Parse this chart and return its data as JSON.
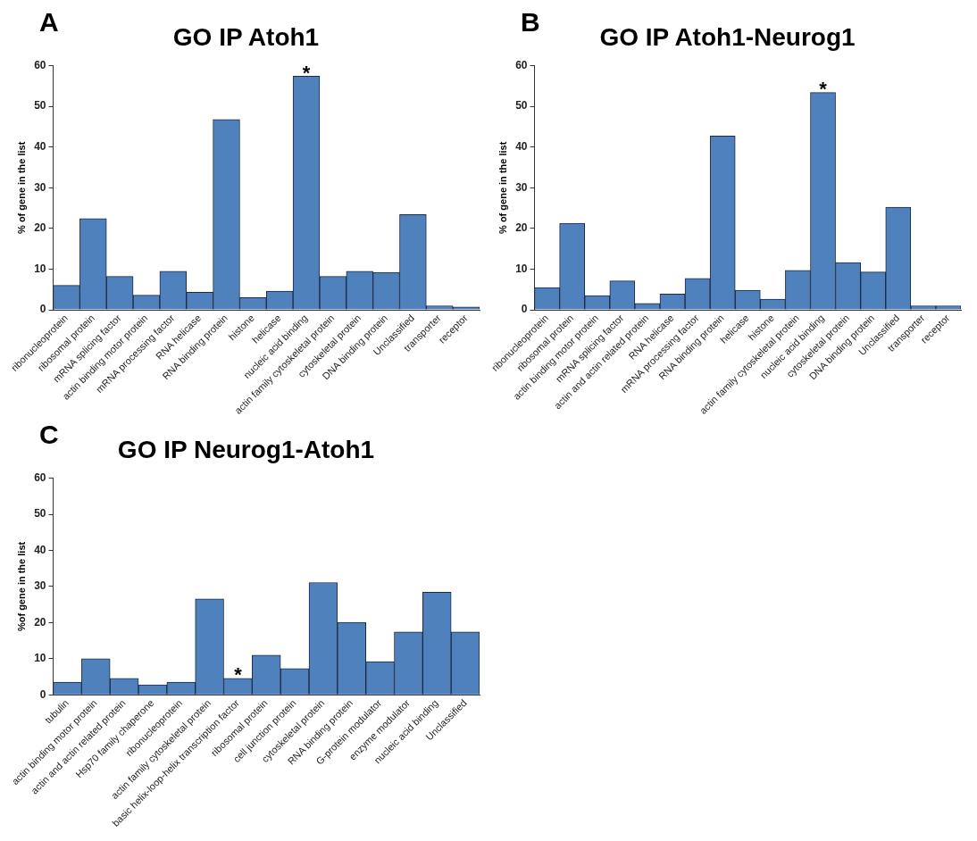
{
  "chart_data": [
    {
      "type": "bar",
      "title": "GO IP Atoh1",
      "ylabel": "% of gene in the list",
      "categories": [
        "ribonucleoprotein",
        "ribosomal protein",
        "mRNA splicing factor",
        "actin binding motor protein",
        "mRNA processing factor",
        "RNA helicase",
        "RNA binding protein",
        "histone",
        "helicase",
        "nucleic acid binding",
        "actin family cytoskeletal protein",
        "cytoskeletal protein",
        "DNA binding protein",
        "Unclassified",
        "transporter",
        "receptor"
      ],
      "values": [
        6,
        22.4,
        8.2,
        3.6,
        9.5,
        4.3,
        46.8,
        3,
        4.6,
        57.4,
        8.2,
        9.5,
        9.2,
        23.4,
        1,
        0.7
      ],
      "color": "#4f81bd",
      "ylim": [
        0,
        60
      ],
      "yticks": [
        0,
        10,
        20,
        30,
        40,
        50,
        60
      ],
      "grid": false,
      "legend": false,
      "annotations": [
        "A",
        {
          "text": "*",
          "x": "nucleic acid binding",
          "y": 57.4
        }
      ]
    },
    {
      "type": "bar",
      "title": "GO IP Atoh1-Neurog1",
      "ylabel": "% of gene in the list",
      "categories": [
        "ribonucleoprotein",
        "ribosomal protein",
        "actin binding motor protein",
        "mRNA splicing factor",
        "actin and actin related protein",
        "RNA helicase",
        "mRNA processing factor",
        "RNA binding protein",
        "helicase",
        "histone",
        "actin family cytoskeletal protein",
        "nucleic acid binding",
        "cytoskeletal protein",
        "DNA binding protein",
        "Unclassified",
        "transporter",
        "receptor"
      ],
      "values": [
        5.5,
        21.3,
        3.5,
        7.1,
        1.6,
        3.9,
        7.7,
        42.7,
        4.8,
        2.6,
        9.7,
        53.4,
        11.6,
        9.3,
        25.2,
        1,
        1
      ],
      "color": "#4f81bd",
      "ylim": [
        0,
        60
      ],
      "yticks": [
        0,
        10,
        20,
        30,
        40,
        50,
        60
      ],
      "grid": false,
      "legend": false,
      "annotations": [
        "B",
        {
          "text": "*",
          "x": "nucleic acid binding",
          "y": 53.4
        }
      ]
    },
    {
      "type": "bar",
      "title": "GO IP Neurog1-Atoh1",
      "ylabel": "%of gene in the list",
      "categories": [
        "tubulin",
        "actin binding motor protein",
        "actin and actin related protein",
        "Hsp70 family chaperone",
        "ribonucleoprotein",
        "actin family cytoskeletal protein",
        "basic helix-loop-helix transcription factor",
        "ribosomal protein",
        "cell junction protein",
        "cytoskeletal protein",
        "RNA binding protein",
        "G-protein modulator",
        "enzyme modulator",
        "nucleic acid binding",
        "Unclassified"
      ],
      "values": [
        3.5,
        10,
        4.6,
        2.8,
        3.5,
        26.6,
        4.6,
        11,
        7.3,
        31.1,
        20.1,
        9.2,
        17.4,
        28.4,
        17.4
      ],
      "color": "#4f81bd",
      "ylim": [
        0,
        60
      ],
      "yticks": [
        0,
        10,
        20,
        30,
        40,
        50,
        60
      ],
      "grid": false,
      "legend": false,
      "annotations": [
        "C",
        {
          "text": "*",
          "x": "basic helix-loop-helix transcription factor",
          "y": 4.6
        }
      ]
    }
  ]
}
